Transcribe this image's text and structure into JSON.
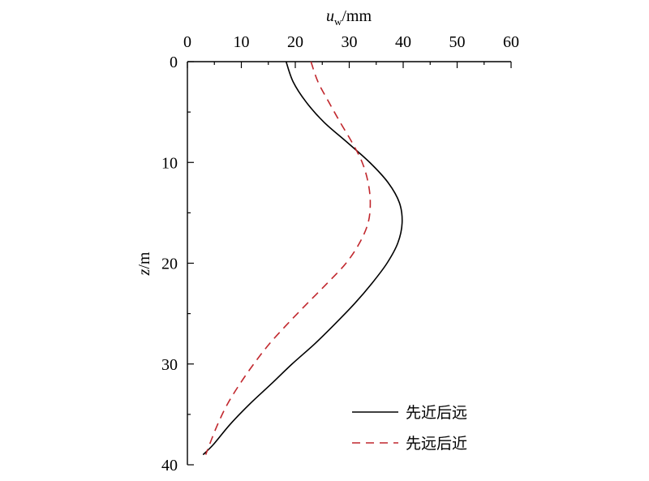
{
  "chart_data": {
    "type": "line",
    "xlabel": {
      "var": "u",
      "sub": "w",
      "unit": "/mm"
    },
    "ylabel": {
      "var": "z",
      "unit": "/m"
    },
    "xlim": [
      0,
      60
    ],
    "ylim": [
      0,
      40
    ],
    "y_inverted": true,
    "x_axis_position": "top",
    "xticks": [
      0,
      10,
      20,
      30,
      40,
      50,
      60
    ],
    "yticks": [
      0,
      10,
      20,
      30,
      40
    ],
    "grid": false,
    "legend_position": "bottom-right",
    "series": [
      {
        "name": "先近后远",
        "color": "#000000",
        "line_style": "solid",
        "x": [
          18.3,
          19.6,
          22.0,
          25.3,
          29.6,
          33.8,
          37.2,
          39.3,
          39.8,
          39.0,
          37.0,
          34.2,
          31.0,
          27.4,
          23.6,
          19.4,
          15.5,
          11.5,
          7.9,
          4.8,
          2.9
        ],
        "y": [
          0,
          2,
          4,
          6,
          8,
          10,
          12,
          14,
          16,
          18,
          20,
          22,
          24,
          26,
          28,
          30,
          32,
          34,
          36,
          38,
          39
        ]
      },
      {
        "name": "先远后近",
        "color": "#c1272d",
        "line_style": "dashed",
        "x": [
          22.9,
          24.2,
          26.2,
          28.3,
          30.5,
          32.4,
          33.5,
          33.9,
          33.5,
          31.9,
          29.4,
          25.9,
          22.2,
          18.6,
          15.2,
          12.3,
          9.7,
          7.4,
          5.6,
          4.1,
          3.4
        ],
        "y": [
          0,
          2,
          4,
          6,
          8,
          10,
          12,
          14,
          16,
          18,
          20,
          22,
          24,
          26,
          28,
          30,
          32,
          34,
          36,
          38,
          39
        ]
      }
    ]
  }
}
